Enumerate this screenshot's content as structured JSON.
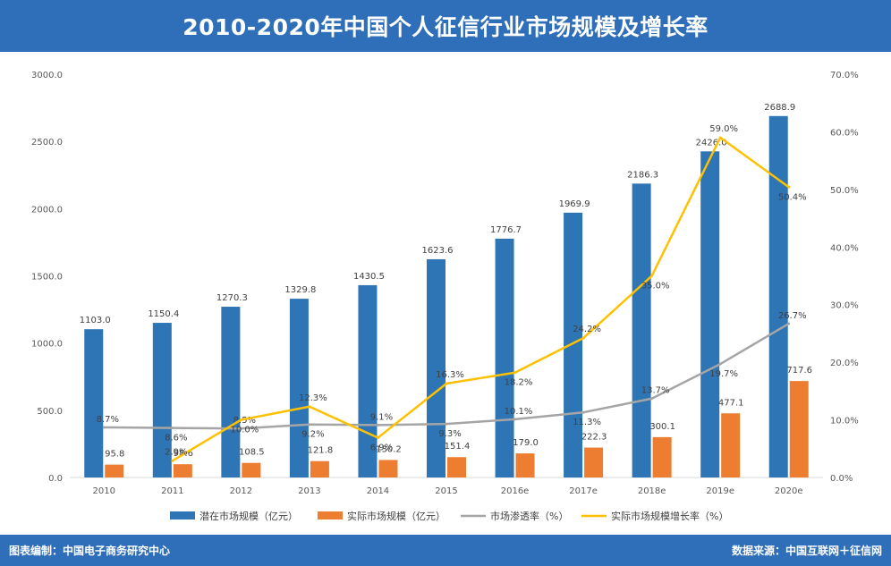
{
  "title": "2010-2020年中国个人征信行业市场规模及增长率",
  "footer": {
    "left": "图表编制：中国电子商务研究中心",
    "right": "数据来源：中国互联网＋征信网"
  },
  "colors": {
    "header": "#2f6fba",
    "potential": "#2e75b6",
    "actual": "#ed7d31",
    "penetration": "#a5a5a5",
    "growth": "#ffc000"
  },
  "chart_data": {
    "type": "bar",
    "categories": [
      "2010",
      "2011",
      "2012",
      "2013",
      "2014",
      "2015",
      "2016e",
      "2017e",
      "2018e",
      "2019e",
      "2020e"
    ],
    "series": [
      {
        "name": "潜在市场规模（亿元）",
        "type": "bar",
        "axis": "left",
        "values": [
          1103.0,
          1150.4,
          1270.3,
          1329.8,
          1430.5,
          1623.6,
          1776.7,
          1969.9,
          2186.3,
          2426.0,
          2688.9
        ],
        "labels": [
          "1103.0",
          "1150.4",
          "1270.3",
          "1329.8",
          "1430.5",
          "1623.6",
          "1776.7",
          "1969.9",
          "2186.3",
          "2426.0",
          "2688.9"
        ]
      },
      {
        "name": "实际市场规模（亿元）",
        "type": "bar",
        "axis": "left",
        "values": [
          95.8,
          98.6,
          108.5,
          121.8,
          130.2,
          151.4,
          179.0,
          222.3,
          300.1,
          477.1,
          717.6
        ],
        "labels": [
          "95.8",
          "98.6",
          "108.5",
          "121.8",
          "130.2",
          "151.4",
          "179.0",
          "222.3",
          "300.1",
          "477.1",
          "717.6"
        ]
      },
      {
        "name": "市场渗透率（%）",
        "type": "line",
        "axis": "right",
        "values": [
          8.7,
          8.6,
          8.5,
          9.2,
          9.1,
          9.3,
          10.1,
          11.3,
          13.7,
          19.7,
          26.7
        ],
        "labels": [
          "8.7%",
          "8.6%",
          "8.5%",
          "9.2%",
          "9.1%",
          "9.3%",
          "10.1%",
          "11.3%",
          "13.7%",
          "19.7%",
          "26.7%"
        ]
      },
      {
        "name": "实际市场规模增长率（%）",
        "type": "line",
        "axis": "right",
        "values": [
          null,
          2.9,
          10.0,
          12.3,
          6.9,
          16.3,
          18.2,
          24.2,
          35.0,
          59.0,
          50.4
        ],
        "labels": [
          "",
          "2.9%",
          "10.0%",
          "12.3%",
          "6.9%",
          "16.3%",
          "18.2%",
          "24.2%",
          "35.0%",
          "59.0%",
          "50.4%"
        ]
      }
    ],
    "y_left": {
      "min": 0,
      "max": 3000,
      "ticks": [
        "0.0",
        "500.0",
        "1000.0",
        "1500.0",
        "2000.0",
        "2500.0",
        "3000.0"
      ]
    },
    "y_right": {
      "min": 0,
      "max": 70,
      "ticks": [
        "0.0%",
        "10.0%",
        "20.0%",
        "30.0%",
        "40.0%",
        "50.0%",
        "60.0%",
        "70.0%"
      ]
    },
    "grid": false,
    "legend_position": "bottom"
  }
}
